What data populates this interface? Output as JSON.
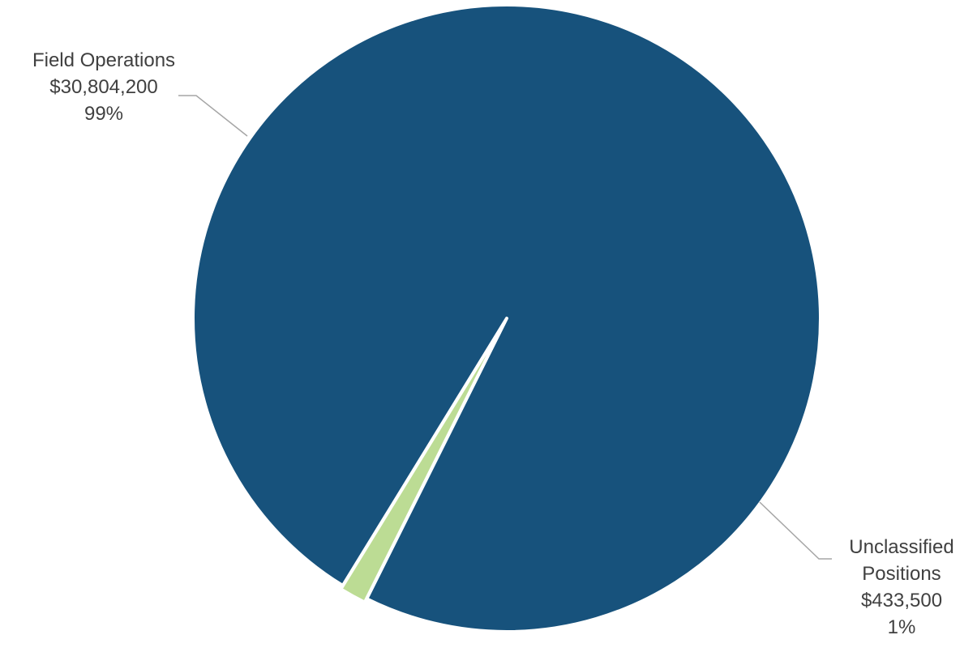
{
  "chart_data": {
    "type": "pie",
    "title": "",
    "legend": "none",
    "slices": [
      {
        "name_lines": [
          "Field Operations"
        ],
        "value": 30804200,
        "value_label": "$30,804,200",
        "percent_label": "99%",
        "color": "#17527c"
      },
      {
        "name_lines": [
          "Unclassified",
          "Positions"
        ],
        "value": 433500,
        "value_label": "$433,500",
        "percent_label": "1%",
        "color": "#bcdc94"
      }
    ]
  }
}
